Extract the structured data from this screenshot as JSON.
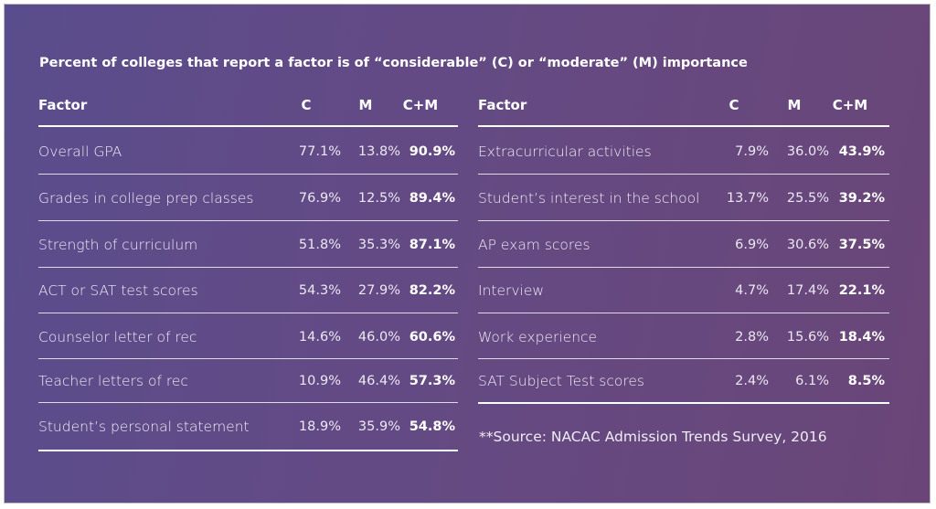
{
  "title": "Percent of colleges that report a factor is of “considerable” (C) or “moderate” (M) importance",
  "tables": [
    {
      "headers": [
        "Factor",
        "C",
        "M",
        "C+M"
      ],
      "rows": [
        [
          "Overall GPA",
          "77.1%",
          "13.8%",
          "90.9%"
        ],
        [
          "Grades in college prep classes",
          "76.9%",
          "12.5%",
          "89.4%"
        ],
        [
          "Strength of curriculum",
          "51.8%",
          "35.3%",
          "87.1%"
        ],
        [
          "ACT or SAT test scores",
          "54.3%",
          "27.9%",
          "82.2%"
        ],
        [
          "Counselor letter of rec",
          "14.6%",
          "46.0%",
          "60.6%"
        ],
        [
          "Teacher letters of rec",
          "10.9%",
          "46.4%",
          "57.3%"
        ],
        [
          "Student’s personal statement",
          "18.9%",
          "35.9%",
          "54.8%"
        ]
      ]
    },
    {
      "headers": [
        "Factor",
        "C",
        "M",
        "C+M"
      ],
      "rows": [
        [
          "Extracurricular activities",
          "7.9%",
          "36.0%",
          "43.9%"
        ],
        [
          "Student’s interest in the school",
          "13.7%",
          "25.5%",
          "39.2%"
        ],
        [
          "AP exam scores",
          "6.9%",
          "30.6%",
          "37.5%"
        ],
        [
          "Interview",
          "4.7%",
          "17.4%",
          "22.1%"
        ],
        [
          "Work experience",
          "2.8%",
          "15.6%",
          "18.4%"
        ],
        [
          "SAT Subject Test scores",
          "2.4%",
          "6.1%",
          "8.5%"
        ]
      ]
    }
  ],
  "source": "**Source: NACAC Admission Trends Survey, 2016"
}
